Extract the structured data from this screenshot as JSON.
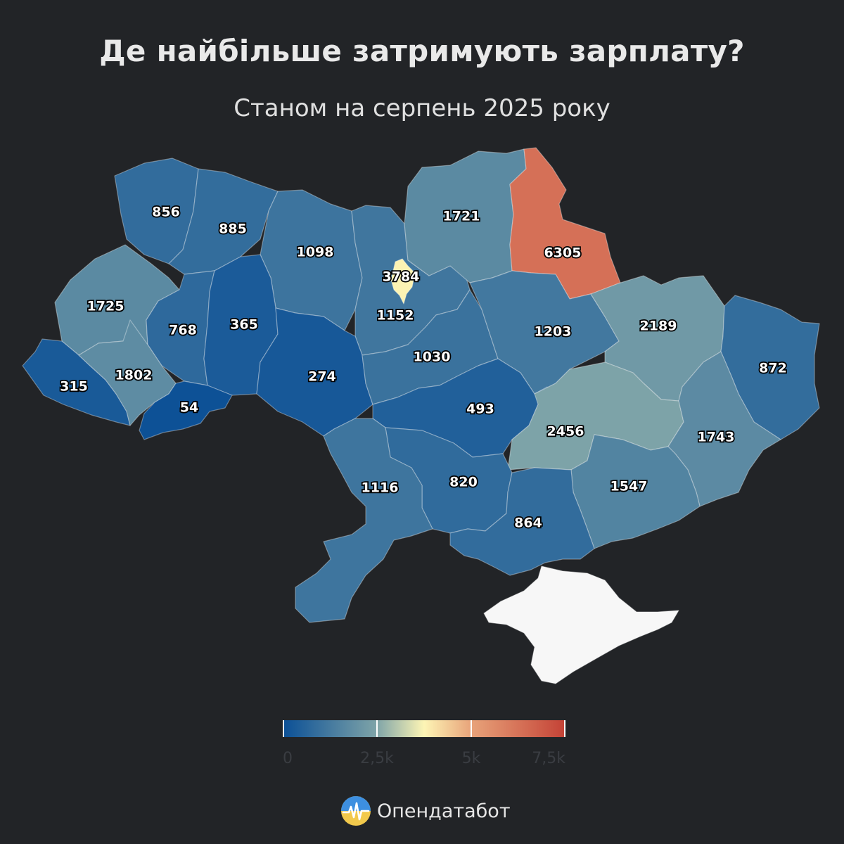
{
  "title": "Де найбільше затримують зарплату?",
  "subtitle": "Станом на серпень 2025 року",
  "map": {
    "scale_min": 0,
    "scale_max": 7500,
    "color_stops": [
      "#0a4f96",
      "#7fa4a8",
      "#fdf5b5",
      "#e8a37a",
      "#c44236"
    ],
    "no_data_color": "#f7f7f7",
    "regions": [
      {
        "name": "Волинська",
        "value": 856
      },
      {
        "name": "Рівненська",
        "value": 885
      },
      {
        "name": "Житомирська",
        "value": 1098
      },
      {
        "name": "Київська",
        "value": 1152
      },
      {
        "name": "м. Київ",
        "value": 3784
      },
      {
        "name": "Чернігівська",
        "value": 1721
      },
      {
        "name": "Сумська",
        "value": 6305
      },
      {
        "name": "Львівська",
        "value": 1725
      },
      {
        "name": "Тернопільська",
        "value": 768
      },
      {
        "name": "Хмельницька",
        "value": 365
      },
      {
        "name": "Вінницька",
        "value": 274
      },
      {
        "name": "Черкаська",
        "value": 1030
      },
      {
        "name": "Полтавська",
        "value": 1203
      },
      {
        "name": "Харківська",
        "value": 2189
      },
      {
        "name": "Луганська",
        "value": 872
      },
      {
        "name": "Закарпатська",
        "value": 315
      },
      {
        "name": "Івано-Франківська",
        "value": 1802
      },
      {
        "name": "Чернівецька",
        "value": 54
      },
      {
        "name": "Кіровоградська",
        "value": 493
      },
      {
        "name": "Дніпропетровська",
        "value": 2456
      },
      {
        "name": "Донецька",
        "value": 1743
      },
      {
        "name": "Запорізька",
        "value": 1547
      },
      {
        "name": "Миколаївська",
        "value": 820
      },
      {
        "name": "Одеська",
        "value": 1116
      },
      {
        "name": "Херсонська",
        "value": 864
      }
    ]
  },
  "legend": {
    "ticks": [
      {
        "label": "0",
        "value": 0
      },
      {
        "label": "2,5k",
        "value": 2500
      },
      {
        "label": "5k",
        "value": 5000
      },
      {
        "label": "7,5k",
        "value": 7500
      }
    ]
  },
  "brand": {
    "name": "Опендатабот"
  }
}
